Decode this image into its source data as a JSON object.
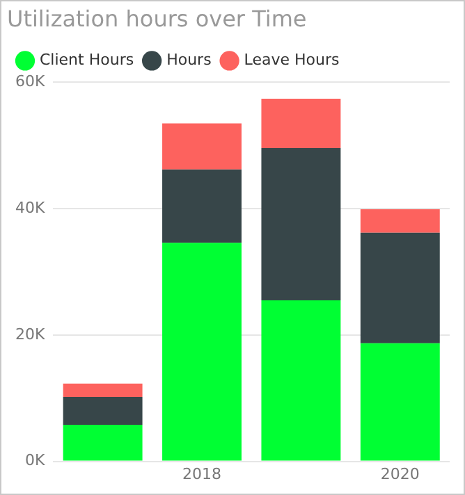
{
  "chart_data": {
    "type": "bar",
    "title": "Utilization hours over Time",
    "categories": [
      null,
      "2018",
      null,
      "2020"
    ],
    "stacked": true,
    "series": [
      {
        "name": "Client Hours",
        "color": "#00ff33",
        "values": [
          5800,
          34600,
          25500,
          18700
        ]
      },
      {
        "name": "Hours",
        "color": "#374649",
        "values": [
          4400,
          11600,
          24100,
          17500
        ]
      },
      {
        "name": "Leave Hours",
        "color": "#fd625e",
        "values": [
          2100,
          7300,
          7800,
          3700
        ]
      }
    ],
    "ylim": [
      0,
      60000
    ],
    "yticks": [
      {
        "value": 0,
        "label": "0K"
      },
      {
        "value": 20000,
        "label": "20K"
      },
      {
        "value": 40000,
        "label": "40K"
      },
      {
        "value": 60000,
        "label": "60K"
      }
    ],
    "grid": "y",
    "legend": "top left",
    "marker": "circle"
  }
}
